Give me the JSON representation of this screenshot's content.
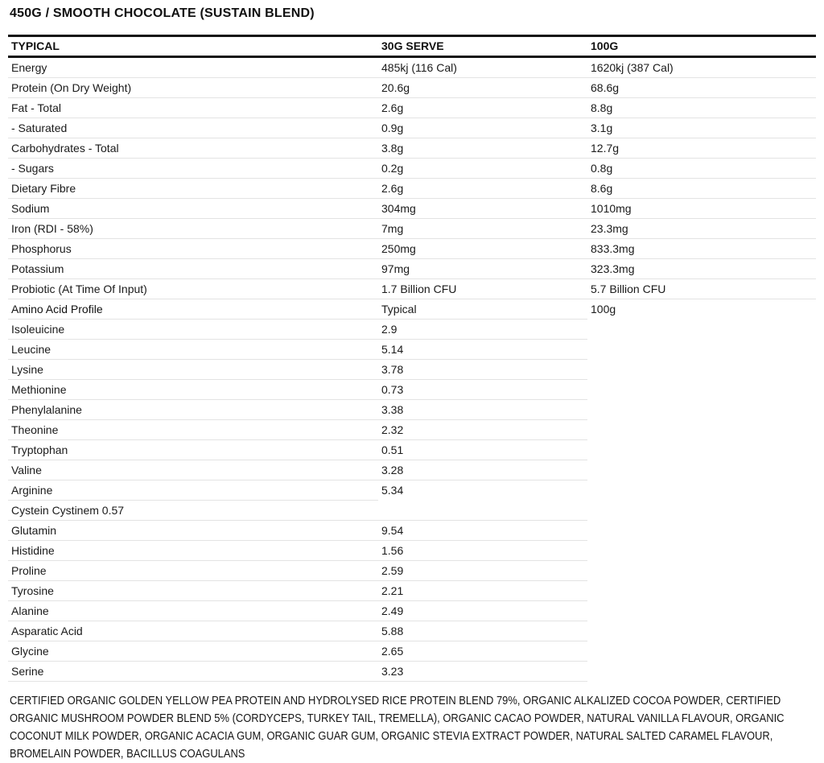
{
  "page": {
    "title": "450G / SMOOTH CHOCOLATE (SUSTAIN BLEND)"
  },
  "table": {
    "columns": [
      "TYPICAL",
      "30G SERVE",
      "100G"
    ],
    "nutrition_rows": [
      {
        "label": "Energy",
        "serve": "485kj (116 Cal)",
        "per100": "1620kj (387 Cal)"
      },
      {
        "label": "Protein (On Dry Weight)",
        "serve": "20.6g",
        "per100": "68.6g"
      },
      {
        "label": "Fat - Total",
        "serve": "2.6g",
        "per100": "8.8g"
      },
      {
        "label": "- Saturated",
        "serve": "0.9g",
        "per100": "3.1g"
      },
      {
        "label": "Carbohydrates - Total",
        "serve": "3.8g",
        "per100": "12.7g"
      },
      {
        "label": "- Sugars",
        "serve": "0.2g",
        "per100": "0.8g"
      },
      {
        "label": "Dietary Fibre",
        "serve": "2.6g",
        "per100": "8.6g"
      },
      {
        "label": "Sodium",
        "serve": "304mg",
        "per100": "1010mg"
      },
      {
        "label": "Iron (RDI - 58%)",
        "serve": "7mg",
        "per100": "23.3mg"
      },
      {
        "label": "Phosphorus",
        "serve": "250mg",
        "per100": "833.3mg"
      },
      {
        "label": "Potassium",
        "serve": "97mg",
        "per100": "323.3mg"
      },
      {
        "label": "Probiotic (At Time Of Input)",
        "serve": "1.7 Billion CFU",
        "per100": "5.7 Billion CFU"
      }
    ],
    "amino_section": {
      "header": {
        "label": "Amino Acid Profile",
        "serve": "Typical",
        "per100": "100g"
      },
      "rows": [
        {
          "label": "Isoleuicine",
          "serve": "2.9",
          "per100": ""
        },
        {
          "label": "Leucine",
          "serve": "5.14",
          "per100": ""
        },
        {
          "label": "Lysine",
          "serve": "3.78",
          "per100": ""
        },
        {
          "label": "Methionine",
          "serve": "0.73",
          "per100": ""
        },
        {
          "label": "Phenylalanine",
          "serve": "3.38",
          "per100": ""
        },
        {
          "label": "Theonine",
          "serve": "2.32",
          "per100": ""
        },
        {
          "label": "Tryptophan",
          "serve": "0.51",
          "per100": ""
        },
        {
          "label": "Valine",
          "serve": "3.28",
          "per100": ""
        },
        {
          "label": "Arginine",
          "serve": "5.34",
          "per100": "",
          "short_separator": true
        },
        {
          "label": "Cystein Cystinem 0.57",
          "serve": "",
          "per100": ""
        },
        {
          "label": "Glutamin",
          "serve": "9.54",
          "per100": ""
        },
        {
          "label": "Histidine",
          "serve": "1.56",
          "per100": ""
        },
        {
          "label": "Proline",
          "serve": "2.59",
          "per100": ""
        },
        {
          "label": "Tyrosine",
          "serve": "2.21",
          "per100": ""
        },
        {
          "label": "Alanine",
          "serve": "2.49",
          "per100": ""
        },
        {
          "label": "Asparatic Acid",
          "serve": "5.88",
          "per100": ""
        },
        {
          "label": "Glycine",
          "serve": "2.65",
          "per100": ""
        },
        {
          "label": "Serine",
          "serve": "3.23",
          "per100": ""
        }
      ]
    }
  },
  "ingredients": "CERTIFIED ORGANIC GOLDEN YELLOW PEA PROTEIN AND HYDROLYSED RICE PROTEIN BLEND 79%, ORGANIC ALKALIZED COCOA POWDER, CERTIFIED ORGANIC MUSHROOM POWDER BLEND 5% (CORDYCEPS, TURKEY TAIL, TREMELLA), ORGANIC CACAO POWDER, NATURAL VANILLA FLAVOUR, ORGANIC COCONUT MILK POWDER, ORGANIC ACACIA GUM, ORGANIC GUAR GUM, ORGANIC STEVIA EXTRACT POWDER, NATURAL SALTED CARAMEL FLAVOUR, BROMELAIN POWDER, BACILLUS COAGULANS",
  "colors": {
    "text": "#1a1a1a",
    "strong_border": "#131313",
    "light_border": "#e3e3e3"
  }
}
